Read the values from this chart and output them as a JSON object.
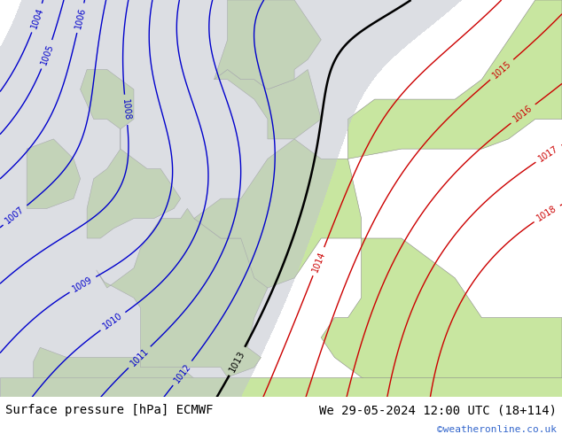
{
  "title_left": "Surface pressure [hPa] ECMWF",
  "title_right": "We 29-05-2024 12:00 UTC (18+114)",
  "watermark": "©weatheronline.co.uk",
  "sea_color": "#c8d4df",
  "land_color": "#c8e6a0",
  "gray_zone_color": "#c0c4cc",
  "title_bar_color": "#ffffff",
  "title_fontsize": 10,
  "watermark_color": "#3366cc",
  "blue_contour_color": "#0000cc",
  "red_contour_color": "#cc0000",
  "black_contour_color": "#000000",
  "coast_color": "#888888",
  "blue_levels": [
    1004,
    1005,
    1006,
    1007,
    1008,
    1009,
    1010,
    1011,
    1012
  ],
  "black_levels": [
    1013
  ],
  "red_levels": [
    1014,
    1015,
    1016,
    1017,
    1018
  ],
  "lon_min": -12,
  "lon_max": 30,
  "lat_min": 42,
  "lat_max": 62
}
